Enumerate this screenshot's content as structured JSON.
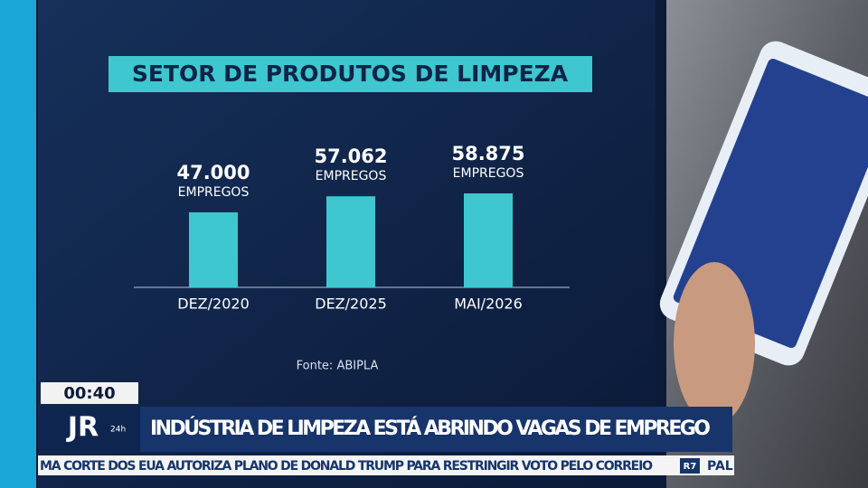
{
  "chart_data": {
    "type": "bar",
    "title": "SETOR DE PRODUTOS DE LIMPEZA",
    "categories": [
      "DEZ/2020",
      "DEZ/2025",
      "MAI/2026"
    ],
    "values": [
      47000,
      57062,
      58875
    ],
    "value_labels": [
      "47.000",
      "57.062",
      "58.875"
    ],
    "value_unit": "EMPREGOS",
    "color": "#3ec7cf",
    "ylim": [
      0,
      60000
    ],
    "source": "Fonte: ABIPLA"
  },
  "broadcast": {
    "time": "00:40",
    "logo": "JR",
    "logo_sub": "24h",
    "headline": "INDÚSTRIA DE LIMPEZA ESTÁ ABRINDO VAGAS DE EMPREGO",
    "ticker": "MA CORTE DOS EUA AUTORIZA PLANO DE DONALD TRUMP PARA RESTRINGIR VOTO PELO CORREIO",
    "ticker_badge": "R7",
    "ticker_next": "PAL"
  }
}
